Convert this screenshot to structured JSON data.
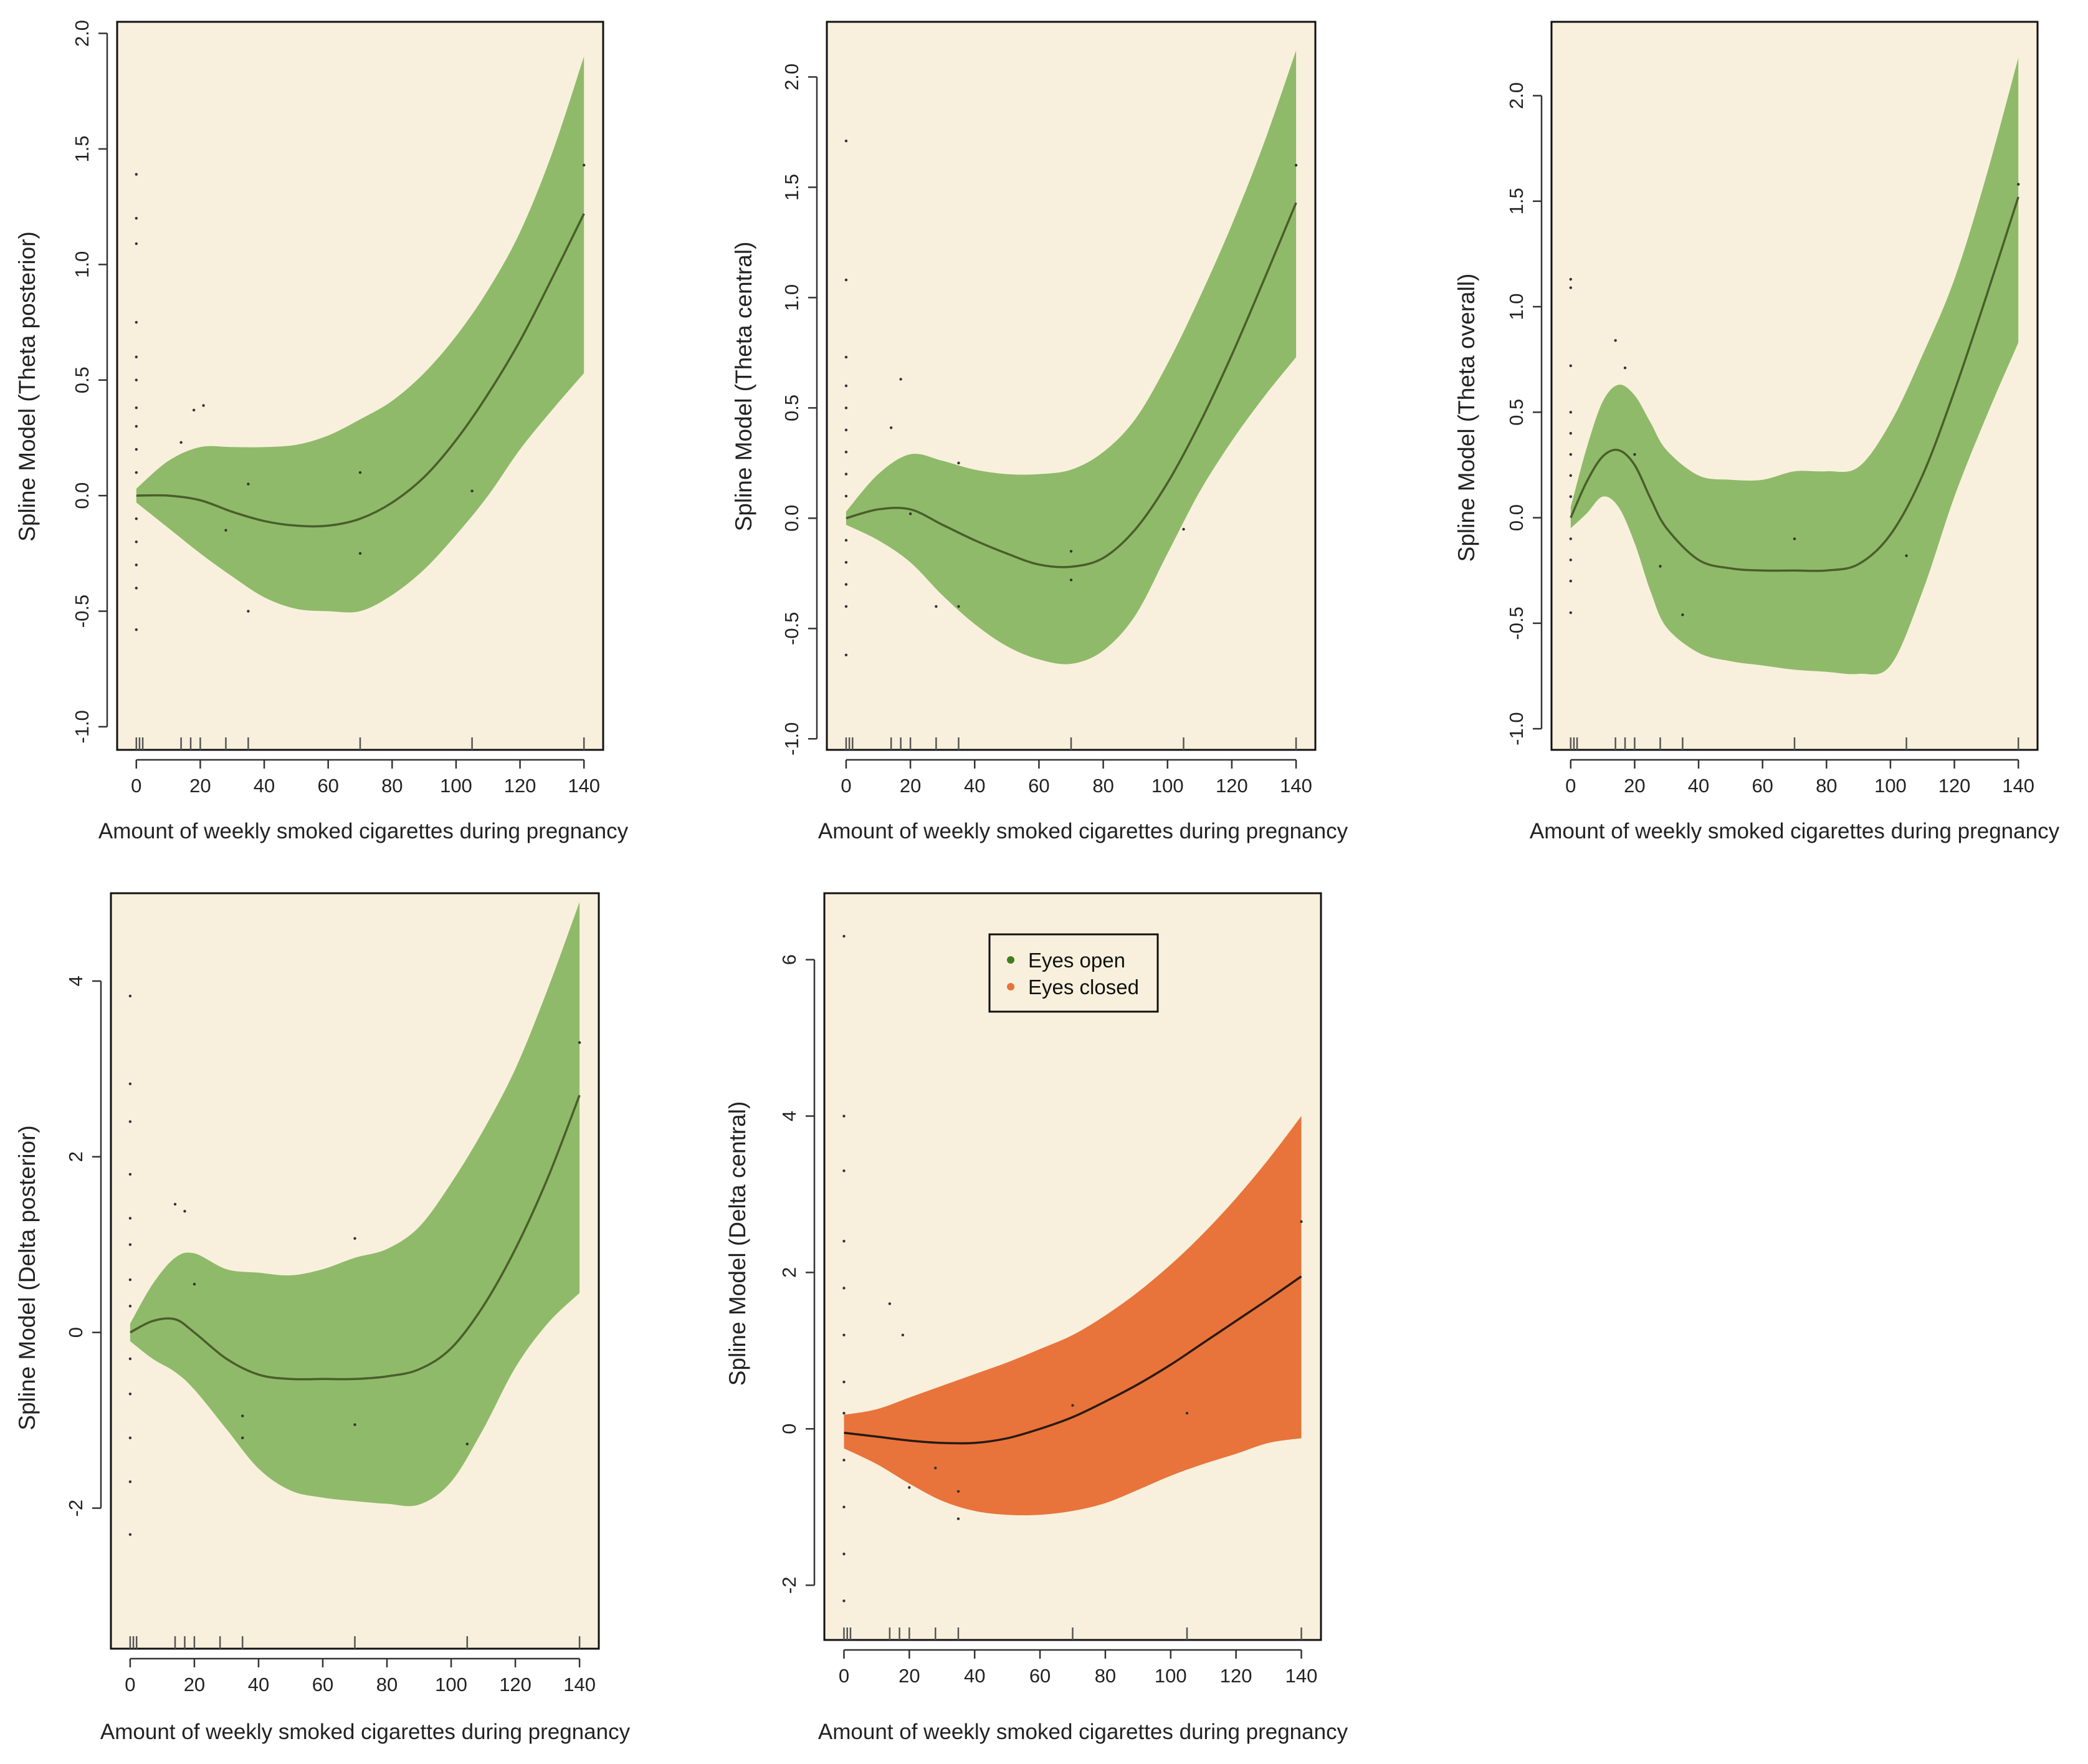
{
  "figure": {
    "panels": [
      {
        "id": "theta-posterior",
        "ylabel": "Spline Model (Theta posterior)",
        "xlabel": "Amount of weekly smoked cigarettes during pregnancy",
        "color": "green"
      },
      {
        "id": "theta-central",
        "ylabel": "Spline Model (Theta central)",
        "xlabel": "Amount of weekly smoked cigarettes during pregnancy",
        "color": "green"
      },
      {
        "id": "theta-overall",
        "ylabel": "Spline Model (Theta overall)",
        "xlabel": "Amount of weekly smoked cigarettes during pregnancy",
        "color": "green"
      },
      {
        "id": "delta-posterior",
        "ylabel": "Spline Model (Delta posterior)",
        "xlabel": "Amount of weekly smoked cigarettes during pregnancy",
        "color": "green"
      },
      {
        "id": "delta-central",
        "ylabel": "Spline Model (Delta central)",
        "xlabel": "Amount of weekly smoked cigarettes during pregnancy",
        "color": "orange"
      }
    ],
    "legend": [
      {
        "label": "Eyes open",
        "color": "#3f7f1f"
      },
      {
        "label": "Eyes closed",
        "color": "#e8743b"
      }
    ]
  },
  "colors": {
    "panel_bg": "#f8f0dc",
    "band_green": "#8fba6a",
    "band_orange": "#e8743b",
    "line_green": "#4a5e2a",
    "line_orange": "#2a1a10",
    "rug": "#555555"
  },
  "chart_data": [
    {
      "type": "line",
      "title": "",
      "xlabel": "Amount of weekly smoked cigarettes during pregnancy",
      "ylabel": "Spline Model (Theta posterior)",
      "xlim": [
        -6,
        146
      ],
      "ylim": [
        -1.1,
        2.05
      ],
      "xticks": [
        0,
        20,
        40,
        60,
        80,
        100,
        120,
        140
      ],
      "yticks": [
        -1.0,
        -0.5,
        0.0,
        0.5,
        1.0,
        1.5,
        2.0
      ],
      "ytick_labels": [
        "-1.0",
        "-0.5",
        "0.0",
        "0.5",
        "1.0",
        "1.5",
        "2.0"
      ],
      "x": [
        0,
        10,
        20,
        30,
        40,
        50,
        60,
        70,
        80,
        90,
        100,
        110,
        120,
        130,
        140
      ],
      "series": [
        {
          "name": "fit",
          "values": [
            0.0,
            0.0,
            -0.02,
            -0.07,
            -0.11,
            -0.13,
            -0.13,
            -0.1,
            -0.03,
            0.08,
            0.24,
            0.44,
            0.67,
            0.94,
            1.22
          ]
        },
        {
          "name": "lower",
          "values": [
            -0.03,
            -0.14,
            -0.25,
            -0.35,
            -0.44,
            -0.49,
            -0.5,
            -0.5,
            -0.43,
            -0.32,
            -0.17,
            0.0,
            0.2,
            0.37,
            0.53
          ]
        },
        {
          "name": "upper",
          "values": [
            0.03,
            0.15,
            0.21,
            0.21,
            0.21,
            0.22,
            0.26,
            0.33,
            0.41,
            0.53,
            0.69,
            0.89,
            1.14,
            1.48,
            1.9
          ]
        }
      ],
      "points": [
        [
          0,
          1.39
        ],
        [
          0,
          1.2
        ],
        [
          0,
          1.09
        ],
        [
          0,
          0.75
        ],
        [
          0,
          0.6
        ],
        [
          0,
          0.5
        ],
        [
          0,
          0.38
        ],
        [
          0,
          0.3
        ],
        [
          0,
          0.2
        ],
        [
          0,
          0.1
        ],
        [
          0,
          -0.1
        ],
        [
          0,
          -0.2
        ],
        [
          0,
          -0.3
        ],
        [
          0,
          -0.4
        ],
        [
          0,
          -0.58
        ],
        [
          14,
          0.23
        ],
        [
          18,
          0.37
        ],
        [
          21,
          0.39
        ],
        [
          28,
          -0.15
        ],
        [
          35,
          0.05
        ],
        [
          35,
          -0.5
        ],
        [
          70,
          0.1
        ],
        [
          70,
          -0.25
        ],
        [
          105,
          0.02
        ],
        [
          140,
          1.43
        ]
      ],
      "rug": [
        0,
        1,
        2,
        14,
        17,
        20,
        28,
        35,
        70,
        105,
        140
      ]
    },
    {
      "type": "line",
      "title": "",
      "xlabel": "Amount of weekly smoked cigarettes during pregnancy",
      "ylabel": "Spline Model (Theta central)",
      "xlim": [
        -6,
        146
      ],
      "ylim": [
        -1.05,
        2.25
      ],
      "xticks": [
        0,
        20,
        40,
        60,
        80,
        100,
        120,
        140
      ],
      "yticks": [
        -1.0,
        -0.5,
        0.0,
        0.5,
        1.0,
        1.5,
        2.0
      ],
      "ytick_labels": [
        "-1.0",
        "-0.5",
        "0.0",
        "0.5",
        "1.0",
        "1.5",
        "2.0"
      ],
      "x": [
        0,
        10,
        20,
        30,
        40,
        50,
        60,
        70,
        80,
        90,
        100,
        110,
        120,
        130,
        140
      ],
      "series": [
        {
          "name": "fit",
          "values": [
            0.0,
            0.04,
            0.04,
            -0.03,
            -0.1,
            -0.16,
            -0.21,
            -0.22,
            -0.18,
            -0.05,
            0.16,
            0.43,
            0.74,
            1.08,
            1.43
          ]
        },
        {
          "name": "lower",
          "values": [
            -0.03,
            -0.1,
            -0.2,
            -0.35,
            -0.48,
            -0.58,
            -0.64,
            -0.66,
            -0.6,
            -0.44,
            -0.16,
            0.12,
            0.35,
            0.55,
            0.73
          ]
        },
        {
          "name": "upper",
          "values": [
            0.03,
            0.2,
            0.29,
            0.26,
            0.22,
            0.2,
            0.2,
            0.22,
            0.3,
            0.45,
            0.7,
            1.0,
            1.33,
            1.7,
            2.12
          ]
        }
      ],
      "points": [
        [
          0,
          1.71
        ],
        [
          0,
          1.08
        ],
        [
          0,
          0.73
        ],
        [
          0,
          0.6
        ],
        [
          0,
          0.5
        ],
        [
          0,
          0.4
        ],
        [
          0,
          0.3
        ],
        [
          0,
          0.2
        ],
        [
          0,
          0.1
        ],
        [
          0,
          -0.1
        ],
        [
          0,
          -0.2
        ],
        [
          0,
          -0.3
        ],
        [
          0,
          -0.4
        ],
        [
          0,
          -0.62
        ],
        [
          14,
          0.41
        ],
        [
          17,
          0.63
        ],
        [
          20,
          0.02
        ],
        [
          28,
          -0.4
        ],
        [
          35,
          0.25
        ],
        [
          35,
          -0.4
        ],
        [
          70,
          -0.15
        ],
        [
          70,
          -0.28
        ],
        [
          105,
          -0.05
        ],
        [
          140,
          1.6
        ]
      ],
      "rug": [
        0,
        1,
        2,
        14,
        17,
        20,
        28,
        35,
        70,
        105,
        140
      ]
    },
    {
      "type": "line",
      "title": "",
      "xlabel": "Amount of weekly smoked cigarettes during pregnancy",
      "ylabel": "Spline Model (Theta overall)",
      "xlim": [
        -6,
        146
      ],
      "ylim": [
        -1.1,
        2.35
      ],
      "xticks": [
        0,
        20,
        40,
        60,
        80,
        100,
        120,
        140
      ],
      "yticks": [
        -1.0,
        -0.5,
        0.0,
        0.5,
        1.0,
        1.5,
        2.0
      ],
      "ytick_labels": [
        "-1.0",
        "-0.5",
        "0.0",
        "0.5",
        "1.0",
        "1.5",
        "2.0"
      ],
      "x": [
        0,
        5,
        10,
        15,
        20,
        25,
        30,
        40,
        50,
        60,
        70,
        80,
        90,
        100,
        110,
        120,
        130,
        140
      ],
      "series": [
        {
          "name": "fit",
          "values": [
            0.0,
            0.17,
            0.29,
            0.32,
            0.25,
            0.09,
            -0.05,
            -0.2,
            -0.24,
            -0.25,
            -0.25,
            -0.25,
            -0.22,
            -0.08,
            0.2,
            0.6,
            1.05,
            1.52
          ]
        },
        {
          "name": "lower",
          "values": [
            -0.05,
            0.02,
            0.1,
            0.05,
            -0.12,
            -0.35,
            -0.52,
            -0.64,
            -0.68,
            -0.7,
            -0.72,
            -0.73,
            -0.74,
            -0.7,
            -0.35,
            0.1,
            0.48,
            0.83
          ]
        },
        {
          "name": "upper",
          "values": [
            0.05,
            0.33,
            0.55,
            0.63,
            0.58,
            0.45,
            0.32,
            0.2,
            0.18,
            0.18,
            0.22,
            0.22,
            0.24,
            0.45,
            0.77,
            1.13,
            1.62,
            2.18
          ]
        }
      ],
      "points": [
        [
          0,
          1.13
        ],
        [
          0,
          1.09
        ],
        [
          0,
          0.72
        ],
        [
          0,
          0.5
        ],
        [
          0,
          0.4
        ],
        [
          0,
          0.3
        ],
        [
          0,
          0.2
        ],
        [
          0,
          0.1
        ],
        [
          0,
          -0.1
        ],
        [
          0,
          -0.2
        ],
        [
          0,
          -0.3
        ],
        [
          0,
          -0.45
        ],
        [
          14,
          0.84
        ],
        [
          17,
          0.71
        ],
        [
          20,
          0.3
        ],
        [
          28,
          -0.23
        ],
        [
          35,
          -0.46
        ],
        [
          70,
          -0.1
        ],
        [
          105,
          -0.18
        ],
        [
          140,
          1.58
        ]
      ],
      "rug": [
        0,
        1,
        2,
        14,
        17,
        20,
        28,
        35,
        70,
        105,
        140
      ]
    },
    {
      "type": "line",
      "title": "",
      "xlabel": "Amount of weekly smoked cigarettes during pregnancy",
      "ylabel": "Spline Model (Delta posterior)",
      "xlim": [
        -6,
        146
      ],
      "ylim": [
        -3.6,
        5.0
      ],
      "xticks": [
        0,
        20,
        40,
        60,
        80,
        100,
        120,
        140
      ],
      "yticks": [
        -2,
        0,
        2,
        4
      ],
      "ytick_labels": [
        "-2",
        "0",
        "2",
        "4"
      ],
      "x": [
        0,
        7,
        14,
        20,
        30,
        40,
        50,
        60,
        70,
        80,
        90,
        100,
        110,
        120,
        130,
        140
      ],
      "series": [
        {
          "name": "fit",
          "values": [
            0.0,
            0.13,
            0.15,
            0.0,
            -0.3,
            -0.48,
            -0.53,
            -0.53,
            -0.53,
            -0.5,
            -0.42,
            -0.18,
            0.3,
            0.95,
            1.75,
            2.7
          ]
        },
        {
          "name": "lower",
          "values": [
            -0.1,
            -0.3,
            -0.45,
            -0.65,
            -1.1,
            -1.55,
            -1.8,
            -1.88,
            -1.92,
            -1.95,
            -1.96,
            -1.7,
            -1.1,
            -0.4,
            0.1,
            0.45
          ]
        },
        {
          "name": "upper",
          "values": [
            0.1,
            0.55,
            0.85,
            0.9,
            0.72,
            0.68,
            0.65,
            0.72,
            0.85,
            0.95,
            1.2,
            1.7,
            2.3,
            3.0,
            3.9,
            4.9
          ]
        }
      ],
      "points": [
        [
          0,
          3.83
        ],
        [
          0,
          2.83
        ],
        [
          0,
          2.4
        ],
        [
          0,
          1.8
        ],
        [
          0,
          1.3
        ],
        [
          0,
          1.0
        ],
        [
          0,
          0.6
        ],
        [
          0,
          0.3
        ],
        [
          0,
          -0.3
        ],
        [
          0,
          -0.7
        ],
        [
          0,
          -1.2
        ],
        [
          0,
          -1.7
        ],
        [
          0,
          -2.3
        ],
        [
          14,
          1.46
        ],
        [
          17,
          1.38
        ],
        [
          20,
          0.55
        ],
        [
          35,
          -0.95
        ],
        [
          35,
          -1.2
        ],
        [
          70,
          1.07
        ],
        [
          70,
          -1.05
        ],
        [
          105,
          -1.27
        ],
        [
          140,
          3.3
        ]
      ],
      "rug": [
        0,
        1,
        2,
        14,
        17,
        20,
        28,
        35,
        70,
        105,
        140
      ]
    },
    {
      "type": "line",
      "title": "",
      "xlabel": "Amount of weekly smoked cigarettes during pregnancy",
      "ylabel": "Spline Model (Delta central)",
      "xlim": [
        -6,
        146
      ],
      "ylim": [
        -2.7,
        6.85
      ],
      "xticks": [
        0,
        20,
        40,
        60,
        80,
        100,
        120,
        140
      ],
      "yticks": [
        -2,
        0,
        2,
        4,
        6
      ],
      "ytick_labels": [
        "-2",
        "0",
        "2",
        "4",
        "6"
      ],
      "legend_position": "top-center",
      "x": [
        0,
        10,
        20,
        30,
        40,
        50,
        60,
        70,
        80,
        90,
        100,
        110,
        120,
        130,
        140
      ],
      "series": [
        {
          "name": "fit",
          "values": [
            -0.05,
            -0.1,
            -0.15,
            -0.18,
            -0.18,
            -0.12,
            0.0,
            0.15,
            0.35,
            0.57,
            0.82,
            1.1,
            1.38,
            1.66,
            1.95
          ]
        },
        {
          "name": "lower",
          "values": [
            -0.25,
            -0.45,
            -0.7,
            -0.92,
            -1.05,
            -1.1,
            -1.1,
            -1.05,
            -0.95,
            -0.78,
            -0.6,
            -0.45,
            -0.32,
            -0.18,
            -0.12
          ]
        },
        {
          "name": "upper",
          "values": [
            0.18,
            0.25,
            0.4,
            0.55,
            0.7,
            0.85,
            1.02,
            1.2,
            1.45,
            1.75,
            2.1,
            2.5,
            2.95,
            3.45,
            4.0
          ]
        }
      ],
      "points": [
        [
          0,
          6.3
        ],
        [
          0,
          4.0
        ],
        [
          0,
          3.3
        ],
        [
          0,
          2.4
        ],
        [
          0,
          1.8
        ],
        [
          0,
          1.2
        ],
        [
          0,
          0.6
        ],
        [
          0,
          0.2
        ],
        [
          0,
          -0.4
        ],
        [
          0,
          -1.0
        ],
        [
          0,
          -1.6
        ],
        [
          0,
          -2.2
        ],
        [
          14,
          1.6
        ],
        [
          18,
          1.2
        ],
        [
          20,
          -0.75
        ],
        [
          28,
          -0.5
        ],
        [
          35,
          -1.15
        ],
        [
          35,
          -0.8
        ],
        [
          70,
          0.3
        ],
        [
          105,
          0.2
        ],
        [
          140,
          2.65
        ]
      ],
      "rug": [
        0,
        1,
        2,
        14,
        17,
        20,
        28,
        35,
        70,
        105,
        140
      ]
    }
  ]
}
